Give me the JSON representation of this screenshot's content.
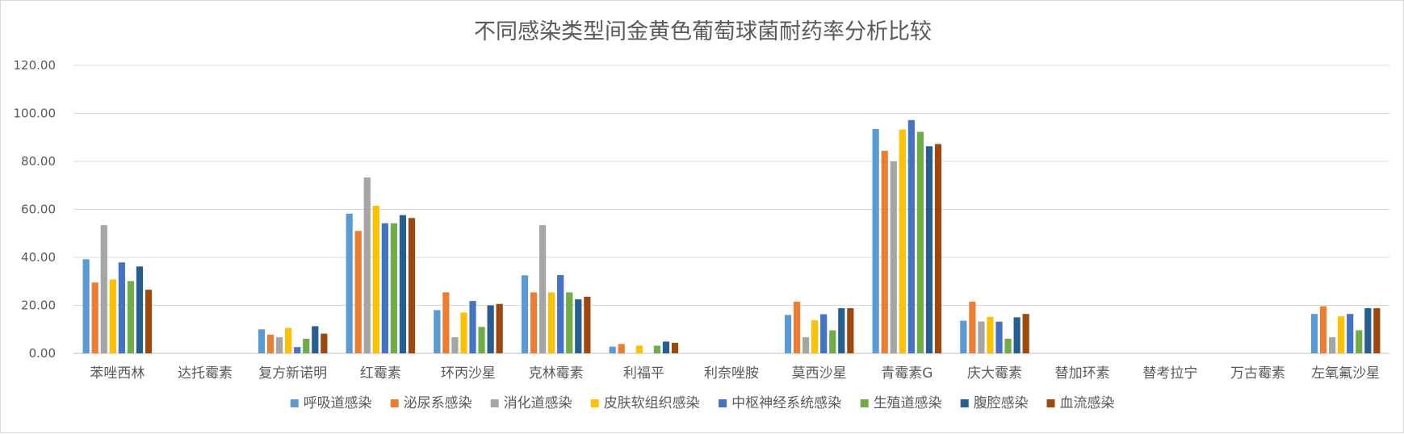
{
  "chart_data": {
    "type": "bar",
    "title": "不同感染类型间金黄色葡萄球菌耐药率分析比较",
    "xlabel": "",
    "ylabel": "",
    "ylim": [
      0,
      120
    ],
    "yticks": [
      "0.00",
      "20.00",
      "40.00",
      "60.00",
      "80.00",
      "100.00",
      "120.00"
    ],
    "grid": true,
    "legend_position": "bottom",
    "categories": [
      "苯唑西林",
      "达托霉素",
      "复方新诺明",
      "红霉素",
      "环丙沙星",
      "克林霉素",
      "利福平",
      "利奈唑胺",
      "莫西沙星",
      "青霉素G",
      "庆大霉素",
      "替加环素",
      "替考拉宁",
      "万古霉素",
      "左氧氟沙星"
    ],
    "series": [
      {
        "name": "呼吸道感染",
        "color": "#5b9bd5",
        "values": [
          39.2,
          0,
          10.0,
          58.2,
          18.0,
          32.5,
          2.8,
          0,
          16.0,
          93.5,
          13.6,
          0,
          0,
          0,
          16.4
        ]
      },
      {
        "name": "泌尿系感染",
        "color": "#ed7d31",
        "values": [
          29.5,
          0,
          7.8,
          51.0,
          25.4,
          25.4,
          3.9,
          0,
          21.5,
          84.4,
          21.5,
          0,
          0,
          0,
          19.6
        ]
      },
      {
        "name": "消化道感染",
        "color": "#a5a5a5",
        "values": [
          53.4,
          0,
          6.7,
          73.3,
          6.7,
          53.4,
          0,
          0,
          6.7,
          80.0,
          13.3,
          0,
          0,
          0,
          6.7
        ]
      },
      {
        "name": "皮肤软组织感染",
        "color": "#ffc000",
        "values": [
          30.8,
          0,
          10.6,
          61.5,
          17.0,
          25.4,
          3.2,
          0,
          13.8,
          93.2,
          15.2,
          0,
          0,
          0,
          15.4
        ]
      },
      {
        "name": "中枢神经系统感染",
        "color": "#4472c4",
        "values": [
          37.9,
          0,
          2.6,
          54.2,
          21.8,
          32.6,
          0,
          0,
          16.3,
          97.2,
          13.2,
          0,
          0,
          0,
          16.4
        ]
      },
      {
        "name": "生殖道感染",
        "color": "#70ad47",
        "values": [
          30.1,
          0,
          6.1,
          54.2,
          11.0,
          25.4,
          3.2,
          0,
          9.6,
          92.3,
          6.1,
          0,
          0,
          0,
          9.6
        ]
      },
      {
        "name": "腹腔感染",
        "color": "#255e91",
        "values": [
          36.2,
          0,
          11.3,
          57.6,
          20.0,
          22.5,
          4.9,
          0,
          18.8,
          86.3,
          15.0,
          0,
          0,
          0,
          18.8
        ]
      },
      {
        "name": "血流感染",
        "color": "#9e480e",
        "values": [
          26.5,
          0,
          8.2,
          56.4,
          20.6,
          23.6,
          4.4,
          0,
          18.8,
          87.2,
          16.4,
          0,
          0,
          0,
          18.8
        ]
      }
    ]
  }
}
